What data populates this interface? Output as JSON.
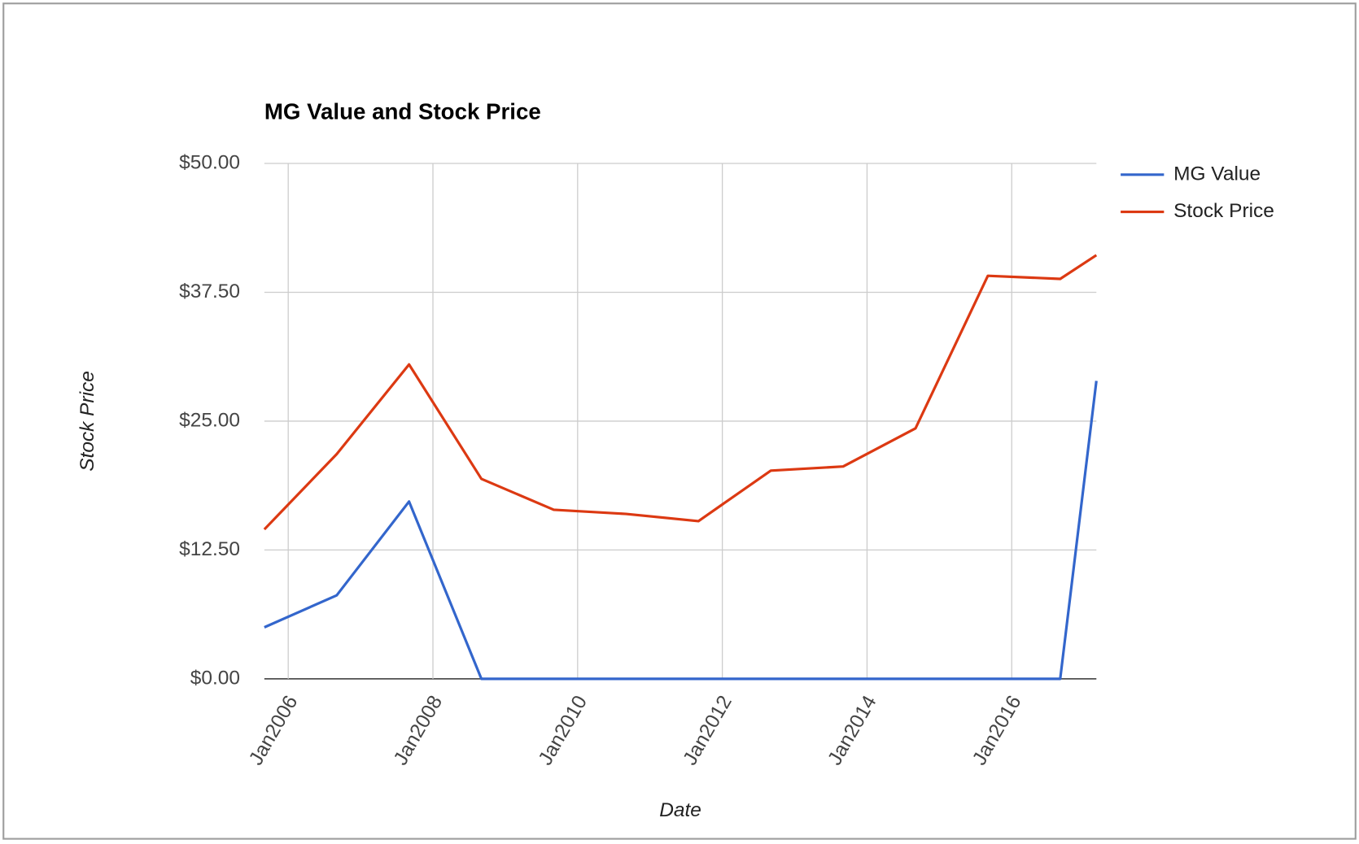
{
  "chart_data": {
    "type": "line",
    "title": "MG Value and Stock Price",
    "x_label": "Date",
    "y_label": "Stock Price",
    "x": [
      2005.67,
      2006.67,
      2007.67,
      2008.67,
      2009.67,
      2010.67,
      2011.67,
      2012.67,
      2013.67,
      2014.67,
      2015.67,
      2016.67,
      2017.17
    ],
    "series": [
      {
        "name": "MG Value",
        "color": "#3366cc",
        "values": [
          5.0,
          8.1,
          17.2,
          0,
          0,
          0,
          0,
          0,
          0,
          0,
          0,
          0,
          28.9
        ]
      },
      {
        "name": "Stock Price",
        "color": "#dc3912",
        "values": [
          14.5,
          21.8,
          30.5,
          19.4,
          16.4,
          16.0,
          15.3,
          20.2,
          20.6,
          24.3,
          39.1,
          38.8,
          41.1
        ]
      }
    ],
    "xlim": [
      2005.67,
      2017.17
    ],
    "xticks": [
      {
        "value": 2006,
        "label": "Jan2006"
      },
      {
        "value": 2008,
        "label": "Jan2008"
      },
      {
        "value": 2010,
        "label": "Jan2010"
      },
      {
        "value": 2012,
        "label": "Jan2012"
      },
      {
        "value": 2014,
        "label": "Jan2014"
      },
      {
        "value": 2016,
        "label": "Jan2016"
      }
    ],
    "ylim": [
      0,
      50
    ],
    "yticks": [
      {
        "value": 0,
        "label": "$0.00"
      },
      {
        "value": 12.5,
        "label": "$12.50"
      },
      {
        "value": 25,
        "label": "$25.00"
      },
      {
        "value": 37.5,
        "label": "$37.50"
      },
      {
        "value": 50,
        "label": "$50.00"
      }
    ],
    "grid": true,
    "legend": "right"
  }
}
